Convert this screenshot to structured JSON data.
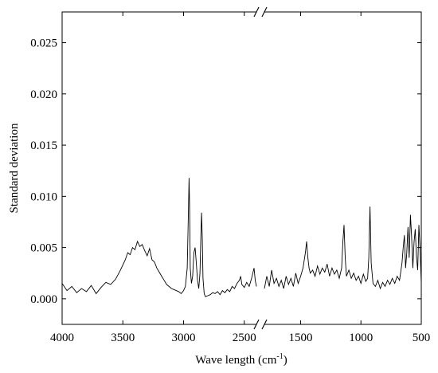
{
  "chart_data": {
    "type": "line",
    "title": "",
    "xlabel": "Wave length (cm",
    "xlabel_superscript": "-1",
    "xlabel_suffix": ")",
    "ylabel": "Standard deviation",
    "y_range": [
      -0.0025,
      0.028
    ],
    "x_reversed": true,
    "axis_break": "between 2400 and 1800",
    "grid": false,
    "legend": "none",
    "x_segments": [
      {
        "range": [
          4000,
          2400
        ],
        "ticks": [
          4000,
          3500,
          3000,
          2500
        ],
        "tick_labels": [
          "4000",
          "3500",
          "3000",
          "2500"
        ]
      },
      {
        "range": [
          1800,
          500
        ],
        "ticks": [
          1500,
          1000,
          500
        ],
        "tick_labels": [
          "1500",
          "1000",
          "500"
        ]
      }
    ],
    "y_ticks": [
      0.0,
      0.005,
      0.01,
      0.015,
      0.02,
      0.025
    ],
    "y_tick_labels": [
      "0.000",
      "0.005",
      "0.010",
      "0.015",
      "0.020",
      "0.025"
    ],
    "line_color": "#000000",
    "series": [
      {
        "segment": 0,
        "x": [
          4000,
          3960,
          3920,
          3880,
          3840,
          3800,
          3760,
          3720,
          3680,
          3640,
          3600,
          3560,
          3520,
          3480,
          3460,
          3440,
          3420,
          3400,
          3380,
          3360,
          3340,
          3320,
          3300,
          3280,
          3260,
          3240,
          3220,
          3200,
          3180,
          3160,
          3140,
          3120,
          3100,
          3080,
          3060,
          3040,
          3020,
          3000,
          2985,
          2970,
          2960,
          2955,
          2950,
          2945,
          2935,
          2925,
          2915,
          2905,
          2895,
          2885,
          2875,
          2865,
          2858,
          2852,
          2846,
          2840,
          2830,
          2820,
          2800,
          2780,
          2760,
          2740,
          2720,
          2700,
          2680,
          2660,
          2640,
          2620,
          2600,
          2580,
          2560,
          2540,
          2530,
          2520,
          2500,
          2480,
          2460,
          2440,
          2420,
          2410,
          2400
        ],
        "y": [
          0.0015,
          0.0008,
          0.0012,
          0.0006,
          0.001,
          0.0007,
          0.0013,
          0.0005,
          0.0011,
          0.0016,
          0.0014,
          0.0019,
          0.0028,
          0.0038,
          0.0045,
          0.0043,
          0.005,
          0.0048,
          0.0056,
          0.0051,
          0.0053,
          0.0047,
          0.0042,
          0.0049,
          0.0038,
          0.0036,
          0.003,
          0.0026,
          0.0022,
          0.0018,
          0.0014,
          0.0012,
          0.001,
          0.0009,
          0.0008,
          0.0007,
          0.0005,
          0.0008,
          0.0012,
          0.003,
          0.0085,
          0.0118,
          0.009,
          0.003,
          0.0015,
          0.0022,
          0.0045,
          0.005,
          0.0035,
          0.0018,
          0.001,
          0.0025,
          0.006,
          0.0084,
          0.006,
          0.002,
          0.0005,
          0.0002,
          0.0003,
          0.0004,
          0.0006,
          0.0005,
          0.0007,
          0.0004,
          0.0008,
          0.0006,
          0.0009,
          0.0007,
          0.0012,
          0.001,
          0.0015,
          0.0018,
          0.0022,
          0.0014,
          0.0011,
          0.0016,
          0.0012,
          0.002,
          0.003,
          0.0018,
          0.0012
        ]
      },
      {
        "segment": 1,
        "x": [
          1800,
          1780,
          1760,
          1740,
          1720,
          1700,
          1680,
          1660,
          1640,
          1620,
          1600,
          1580,
          1560,
          1540,
          1520,
          1500,
          1480,
          1460,
          1450,
          1440,
          1430,
          1420,
          1400,
          1380,
          1360,
          1340,
          1320,
          1300,
          1280,
          1260,
          1240,
          1220,
          1200,
          1180,
          1160,
          1150,
          1140,
          1130,
          1120,
          1100,
          1080,
          1060,
          1040,
          1020,
          1000,
          980,
          960,
          945,
          935,
          925,
          915,
          900,
          880,
          860,
          840,
          820,
          800,
          780,
          760,
          740,
          720,
          700,
          680,
          660,
          650,
          640,
          630,
          620,
          610,
          600,
          590,
          580,
          570,
          560,
          550,
          540,
          530,
          520,
          510,
          500
        ],
        "y": [
          0.001,
          0.0022,
          0.0012,
          0.0028,
          0.0015,
          0.002,
          0.0012,
          0.0018,
          0.001,
          0.0022,
          0.0014,
          0.002,
          0.0012,
          0.0025,
          0.0015,
          0.0022,
          0.003,
          0.0045,
          0.0056,
          0.004,
          0.003,
          0.0025,
          0.0028,
          0.0022,
          0.0032,
          0.0024,
          0.003,
          0.0026,
          0.0034,
          0.0022,
          0.003,
          0.0024,
          0.0028,
          0.002,
          0.003,
          0.0055,
          0.0072,
          0.004,
          0.0022,
          0.0028,
          0.002,
          0.0025,
          0.0018,
          0.0022,
          0.0015,
          0.0024,
          0.0017,
          0.002,
          0.004,
          0.009,
          0.0035,
          0.0015,
          0.0012,
          0.0018,
          0.001,
          0.0016,
          0.0012,
          0.0018,
          0.0014,
          0.002,
          0.0015,
          0.0022,
          0.0018,
          0.0035,
          0.005,
          0.0062,
          0.003,
          0.0045,
          0.007,
          0.004,
          0.0082,
          0.006,
          0.003,
          0.0055,
          0.0068,
          0.0042,
          0.0028,
          0.0072,
          0.0048,
          0.0015
        ]
      }
    ]
  }
}
